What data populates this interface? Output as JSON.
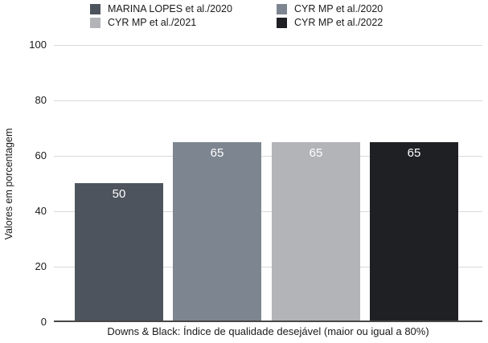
{
  "chart_data": {
    "type": "bar",
    "title": "",
    "categories": [
      "Downs & Black: Índice de qualidade desejável (maior ou igual a 80%)"
    ],
    "series": [
      {
        "name": "MARINA LOPES et al./2020",
        "values": [
          50
        ],
        "color": "#4d545e"
      },
      {
        "name": "CYR MP et al./2020",
        "values": [
          65
        ],
        "color": "#7d8590"
      },
      {
        "name": "CYR MP et al./2021",
        "values": [
          65
        ],
        "color": "#b2b4b8"
      },
      {
        "name": "CYR MP et al./2022",
        "values": [
          65
        ],
        "color": "#1e2023"
      }
    ],
    "xlabel": "Downs & Black: Índice de qualidade desejável (maior ou igual a 80%)",
    "ylabel": "Valores em porcentagem",
    "ylim": [
      0,
      100
    ],
    "yticks": [
      0,
      20,
      40,
      60,
      80,
      100
    ],
    "grid": true,
    "legend_position": "top",
    "value_label_color": "#ffffff",
    "gridline_color": "#d9d9d9",
    "axis_line_color": "#474747"
  }
}
